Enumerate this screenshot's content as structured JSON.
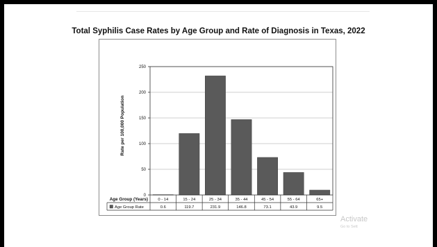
{
  "chart_data": {
    "type": "bar",
    "title": "Total Syphilis Case Rates by Age Group and Rate of Diagnosis in Texas, 2022",
    "xlabel": "Age Group (Years)",
    "ylabel": "Rate per 100,000 Population",
    "ylim": [
      0,
      250
    ],
    "yticks": [
      0,
      50,
      100,
      150,
      200,
      250
    ],
    "categories": [
      "0 - 14",
      "15 - 24",
      "25 - 34",
      "35 - 44",
      "45 - 54",
      "55 - 64",
      "65+"
    ],
    "series": [
      {
        "name": "Age Group Rate",
        "values": [
          0.6,
          119.7,
          231.9,
          146.8,
          73.1,
          43.9,
          9.5
        ],
        "labels": [
          "0.6",
          "119.7",
          "231.9",
          "146.8",
          "73.1",
          "43.9",
          "9.5"
        ]
      }
    ],
    "grid": true,
    "legend": "data-table-below",
    "colors": {
      "bar": "#5a5a5a",
      "grid": "#bfbfbf"
    }
  },
  "watermark": {
    "line1": "Activate",
    "line2": "Go to Sett"
  }
}
